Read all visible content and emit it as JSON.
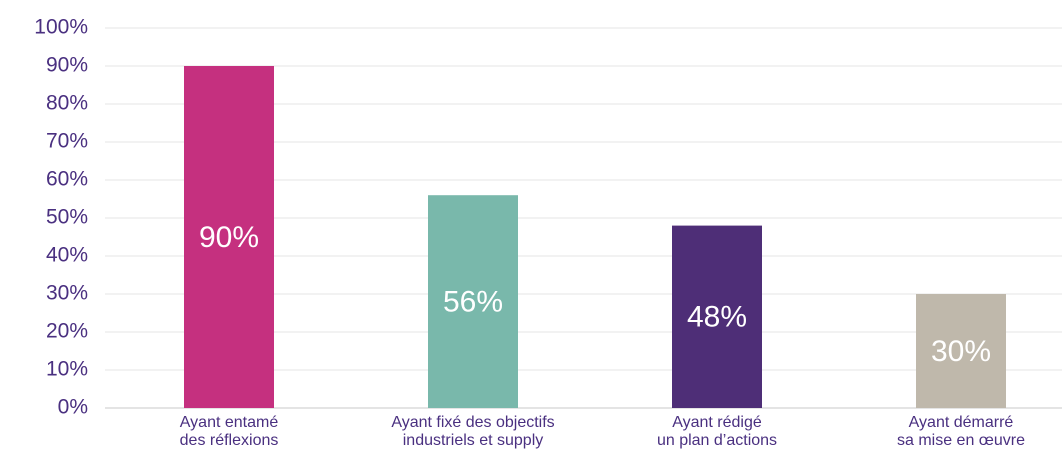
{
  "chart_data": {
    "type": "bar",
    "categories": [
      [
        "Ayant entamé",
        "des réflexions"
      ],
      [
        "Ayant fixé des objectifs",
        "industriels et supply"
      ],
      [
        "Ayant rédigé",
        "un plan d’actions"
      ],
      [
        "Ayant démarré",
        "sa mise en œuvre"
      ]
    ],
    "values": [
      90,
      56,
      48,
      30
    ],
    "value_labels": [
      "90%",
      "56%",
      "48%",
      "30%"
    ],
    "colors": [
      "#c5307f",
      "#79b8ab",
      "#4e2e77",
      "#bfb8ab"
    ],
    "ylim": [
      0,
      100
    ],
    "yticks": [
      {
        "value": 0,
        "label": "0%"
      },
      {
        "value": 10,
        "label": "10%"
      },
      {
        "value": 20,
        "label": "20%"
      },
      {
        "value": 30,
        "label": "30%"
      },
      {
        "value": 40,
        "label": "40%"
      },
      {
        "value": 50,
        "label": "50%"
      },
      {
        "value": 60,
        "label": "60%"
      },
      {
        "value": 70,
        "label": "70%"
      },
      {
        "value": 80,
        "label": "80%"
      },
      {
        "value": 90,
        "label": "90%"
      },
      {
        "value": 100,
        "label": "100%"
      }
    ],
    "grid": true
  }
}
